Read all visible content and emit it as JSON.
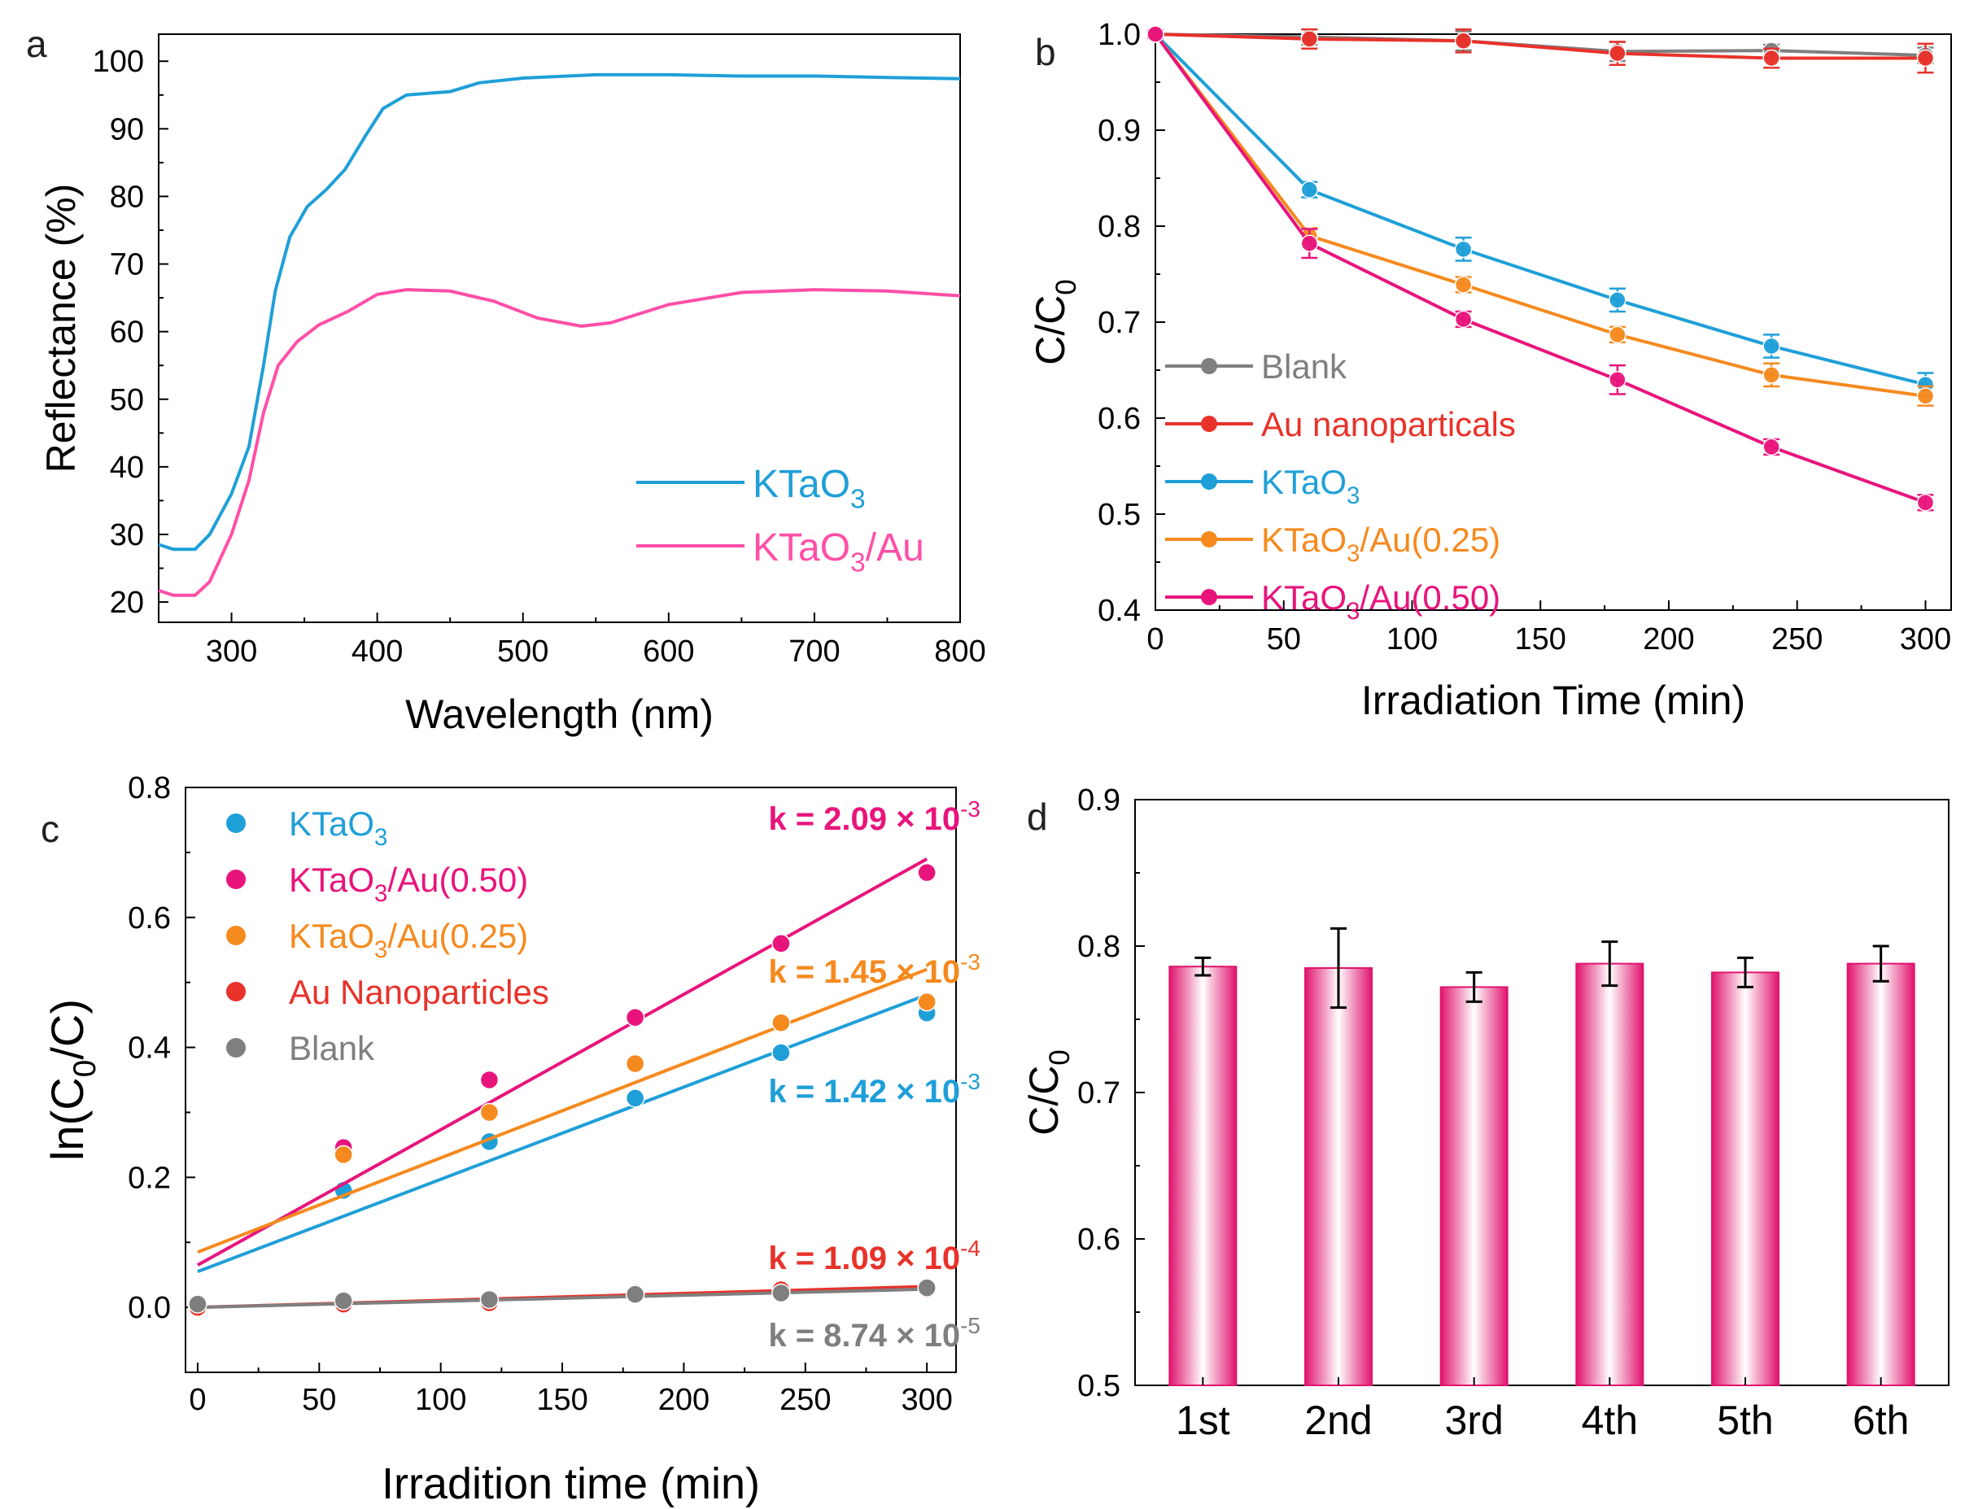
{
  "colors": {
    "blank": "#7f7f7f",
    "au": "#e8322a",
    "ktao3": "#1f9fd8",
    "ktao3_au025": "#f58a1f",
    "ktao3_au050": "#e8147c",
    "axis": "#000000",
    "bar_edge": "#e0146e",
    "bar_light": "#ffffff"
  },
  "chart_data": [
    {
      "panel": "a",
      "type": "line",
      "xlabel": "Wavelength (nm)",
      "ylabel": "Reflectance (%)",
      "xlim": [
        250,
        800
      ],
      "ylim": [
        17,
        104
      ],
      "xticks": [
        300,
        400,
        500,
        600,
        700,
        800
      ],
      "yticks": [
        20,
        30,
        40,
        50,
        60,
        70,
        80,
        90,
        100
      ],
      "legend_position": "bottom-right",
      "series": [
        {
          "name": "KTaO3",
          "sub": "3",
          "label_main": "KTaO",
          "label_tail": "",
          "color": "#1f9fd8",
          "points": [
            [
              250,
              28.5
            ],
            [
              260,
              27.8
            ],
            [
              275,
              27.8
            ],
            [
              285,
              30
            ],
            [
              300,
              36
            ],
            [
              312,
              43
            ],
            [
              322,
              55
            ],
            [
              330,
              66
            ],
            [
              340,
              74
            ],
            [
              352,
              78.5
            ],
            [
              365,
              81
            ],
            [
              378,
              84
            ],
            [
              392,
              89
            ],
            [
              404,
              93
            ],
            [
              420,
              95
            ],
            [
              450,
              95.5
            ],
            [
              470,
              96.8
            ],
            [
              500,
              97.5
            ],
            [
              550,
              98
            ],
            [
              600,
              98
            ],
            [
              650,
              97.8
            ],
            [
              700,
              97.8
            ],
            [
              750,
              97.6
            ],
            [
              800,
              97.4
            ]
          ]
        },
        {
          "name": "KTaO3/Au",
          "sub": "3",
          "label_main": "KTaO",
          "label_tail": "/Au",
          "color": "#ff4fa7",
          "points": [
            [
              250,
              21.7
            ],
            [
              260,
              21
            ],
            [
              275,
              21
            ],
            [
              285,
              23
            ],
            [
              300,
              30
            ],
            [
              312,
              38
            ],
            [
              322,
              48
            ],
            [
              332,
              55
            ],
            [
              345,
              58.5
            ],
            [
              360,
              61
            ],
            [
              380,
              63
            ],
            [
              400,
              65.5
            ],
            [
              420,
              66.2
            ],
            [
              450,
              66
            ],
            [
              480,
              64.5
            ],
            [
              510,
              62
            ],
            [
              540,
              60.8
            ],
            [
              560,
              61.3
            ],
            [
              600,
              64
            ],
            [
              650,
              65.8
            ],
            [
              700,
              66.2
            ],
            [
              750,
              66
            ],
            [
              800,
              65.3
            ]
          ]
        }
      ]
    },
    {
      "panel": "b",
      "type": "line",
      "xlabel": "Irradiation Time (min)",
      "ylabel": "C/C0",
      "ylabel_main": "C/C",
      "ylabel_sub": "0",
      "xlim": [
        0,
        310
      ],
      "ylim": [
        0.4,
        1.0
      ],
      "xticks": [
        0,
        50,
        100,
        150,
        200,
        250,
        300
      ],
      "yticks": [
        0.4,
        0.5,
        0.6,
        0.7,
        0.8,
        0.9,
        1.0
      ],
      "legend_position": "center-left",
      "series": [
        {
          "name": "Blank",
          "label_main": "Blank",
          "sub": "",
          "label_tail": "",
          "color": "#7f7f7f",
          "x": [
            0,
            60,
            120,
            180,
            240,
            300
          ],
          "y": [
            1.0,
            0.997,
            0.993,
            0.982,
            0.983,
            0.978
          ],
          "err": [
            0.004,
            0.008,
            0.01,
            0.01,
            0.006,
            0.008
          ]
        },
        {
          "name": "Au nanoparticals",
          "label_main": "Au nanoparticals",
          "sub": "",
          "label_tail": "",
          "color": "#e8322a",
          "x": [
            0,
            60,
            120,
            180,
            240,
            300
          ],
          "y": [
            1.0,
            0.995,
            0.993,
            0.98,
            0.975,
            0.975
          ],
          "err": [
            0.004,
            0.01,
            0.012,
            0.012,
            0.01,
            0.015
          ]
        },
        {
          "name": "KTaO3",
          "label_main": "KTaO",
          "sub": "3",
          "label_tail": "",
          "color": "#1f9fd8",
          "x": [
            0,
            60,
            120,
            180,
            240,
            300
          ],
          "y": [
            1.0,
            0.838,
            0.776,
            0.723,
            0.675,
            0.635
          ],
          "err": [
            0.004,
            0.008,
            0.012,
            0.012,
            0.012,
            0.012
          ]
        },
        {
          "name": "KTaO3/Au(0.25)",
          "label_main": "KTaO",
          "sub": "3",
          "label_tail": "/Au(0.25)",
          "color": "#f58a1f",
          "x": [
            0,
            60,
            120,
            180,
            240,
            300
          ],
          "y": [
            1.0,
            0.79,
            0.739,
            0.687,
            0.645,
            0.623
          ],
          "err": [
            0.004,
            0.008,
            0.008,
            0.008,
            0.012,
            0.01
          ]
        },
        {
          "name": "KTaO3/Au(0.50)",
          "label_main": "KTaO",
          "sub": "3",
          "label_tail": "/Au(0.50)",
          "color": "#e8147c",
          "x": [
            0,
            60,
            120,
            180,
            240,
            300
          ],
          "y": [
            1.0,
            0.782,
            0.703,
            0.64,
            0.57,
            0.512
          ],
          "err": [
            0.004,
            0.015,
            0.008,
            0.015,
            0.008,
            0.008
          ]
        }
      ]
    },
    {
      "panel": "c",
      "type": "scatter",
      "xlabel": "Irradition time (min)",
      "ylabel": "ln(C0/C)",
      "ylabel_pre": "ln(C",
      "ylabel_sub": "0",
      "ylabel_post": "/C)",
      "xlim": [
        -5,
        312
      ],
      "ylim": [
        -0.1,
        0.8
      ],
      "xticks": [
        0,
        50,
        100,
        150,
        200,
        250,
        300
      ],
      "yticks": [
        0.0,
        0.2,
        0.4,
        0.6,
        0.8
      ],
      "legend_position": "top-left",
      "series": [
        {
          "name": "KTaO3",
          "label_main": "KTaO",
          "sub": "3",
          "label_tail": "",
          "color": "#1f9fd8",
          "x": [
            0,
            60,
            120,
            180,
            240,
            300
          ],
          "y": [
            0.0,
            0.18,
            0.255,
            0.322,
            0.392,
            0.453
          ],
          "fit": [
            0.055,
            0.481
          ],
          "k_text": "k = 1.42 × 10",
          "k_exp": "-3"
        },
        {
          "name": "KTaO3/Au(0.50)",
          "label_main": "KTaO",
          "sub": "3",
          "label_tail": "/Au(0.50)",
          "color": "#e8147c",
          "x": [
            0,
            60,
            120,
            180,
            240,
            300
          ],
          "y": [
            0.0,
            0.246,
            0.35,
            0.446,
            0.56,
            0.669
          ],
          "fit": [
            0.065,
            0.69
          ],
          "k_text": "k = 2.09 × 10",
          "k_exp": "-3"
        },
        {
          "name": "KTaO3/Au(0.25)",
          "label_main": "KTaO",
          "sub": "3",
          "label_tail": "/Au(0.25)",
          "color": "#f58a1f",
          "x": [
            0,
            60,
            120,
            180,
            240,
            300
          ],
          "y": [
            0.0,
            0.235,
            0.3,
            0.375,
            0.438,
            0.47
          ],
          "fit": [
            0.085,
            0.52
          ],
          "k_text": "k = 1.45 × 10",
          "k_exp": "-3"
        },
        {
          "name": "Au Nanoparticles",
          "label_main": "Au Nanoparticles",
          "sub": "",
          "label_tail": "",
          "color": "#e8322a",
          "x": [
            0,
            60,
            120,
            180,
            240,
            300
          ],
          "y": [
            0.0,
            0.005,
            0.007,
            0.022,
            0.027,
            0.028
          ],
          "fit": [
            0.0,
            0.032
          ],
          "k_text": "k = 1.09 × 10",
          "k_exp": "-4"
        },
        {
          "name": "Blank",
          "label_main": "Blank",
          "sub": "",
          "label_tail": "",
          "color": "#7f7f7f",
          "x": [
            0,
            60,
            120,
            180,
            240,
            300
          ],
          "y": [
            0.005,
            0.01,
            0.012,
            0.02,
            0.022,
            0.03
          ],
          "fit": [
            0.0,
            0.028
          ],
          "k_text": "k = 8.74 × 10",
          "k_exp": "-5"
        }
      ]
    },
    {
      "panel": "d",
      "type": "bar",
      "ylabel": "C/C0",
      "ylabel_main": "C/C",
      "ylabel_sub": "0",
      "ylim": [
        0.5,
        0.9
      ],
      "yticks": [
        0.5,
        0.6,
        0.7,
        0.8,
        0.9
      ],
      "categories": [
        "1st",
        "2nd",
        "3rd",
        "4th",
        "5th",
        "6th"
      ],
      "values": [
        0.786,
        0.785,
        0.772,
        0.788,
        0.782,
        0.788
      ],
      "errors": [
        0.006,
        0.027,
        0.01,
        0.015,
        0.01,
        0.012
      ]
    }
  ],
  "panel_labels": [
    "a",
    "b",
    "c",
    "d"
  ]
}
